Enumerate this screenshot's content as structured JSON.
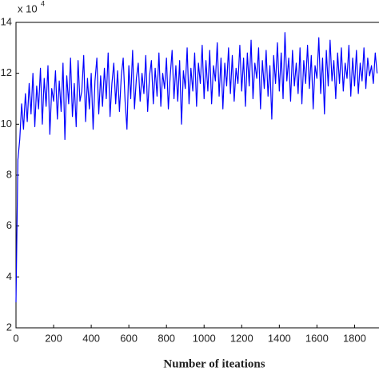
{
  "chart_data": {
    "type": "line",
    "x_label": "Number of iteations",
    "y_multiplier": {
      "base": "x 10",
      "exponent": "4"
    },
    "xlim": [
      0,
      1930
    ],
    "ylim": [
      2,
      14
    ],
    "xticks": [
      0,
      200,
      400,
      600,
      800,
      1000,
      1200,
      1400,
      1600,
      1800
    ],
    "yticks": [
      2,
      4,
      6,
      8,
      10,
      12,
      14
    ],
    "grid": false,
    "x": [
      0,
      10,
      20,
      30,
      40,
      50,
      60,
      70,
      80,
      90,
      100,
      110,
      120,
      130,
      140,
      150,
      160,
      170,
      180,
      190,
      200,
      210,
      220,
      230,
      240,
      250,
      260,
      270,
      280,
      290,
      300,
      310,
      320,
      330,
      340,
      350,
      360,
      370,
      380,
      390,
      400,
      410,
      420,
      430,
      440,
      450,
      460,
      470,
      480,
      490,
      500,
      510,
      520,
      530,
      540,
      550,
      560,
      570,
      580,
      590,
      600,
      610,
      620,
      630,
      640,
      650,
      660,
      670,
      680,
      690,
      700,
      710,
      720,
      730,
      740,
      750,
      760,
      770,
      780,
      790,
      800,
      810,
      820,
      830,
      840,
      850,
      860,
      870,
      880,
      890,
      900,
      910,
      920,
      930,
      940,
      950,
      960,
      970,
      980,
      990,
      1000,
      1010,
      1020,
      1030,
      1040,
      1050,
      1060,
      1070,
      1080,
      1090,
      1100,
      1110,
      1120,
      1130,
      1140,
      1150,
      1160,
      1170,
      1180,
      1190,
      1200,
      1210,
      1220,
      1230,
      1240,
      1250,
      1260,
      1270,
      1280,
      1290,
      1300,
      1310,
      1320,
      1330,
      1340,
      1350,
      1360,
      1370,
      1380,
      1390,
      1400,
      1410,
      1420,
      1430,
      1440,
      1450,
      1460,
      1470,
      1480,
      1490,
      1500,
      1510,
      1520,
      1530,
      1540,
      1550,
      1560,
      1570,
      1580,
      1590,
      1600,
      1610,
      1620,
      1630,
      1640,
      1650,
      1660,
      1670,
      1680,
      1690,
      1700,
      1710,
      1720,
      1730,
      1740,
      1750,
      1760,
      1770,
      1780,
      1790,
      1800,
      1810,
      1820,
      1830,
      1840,
      1850,
      1860,
      1870,
      1880,
      1890,
      1900,
      1910,
      1920
    ],
    "series": [
      {
        "color": "#0000ff",
        "values": [
          3.0,
          8.6,
          9.4,
          10.8,
          9.8,
          11.2,
          10.1,
          11.6,
          10.4,
          12.0,
          9.9,
          11.5,
          10.6,
          12.2,
          10.0,
          11.8,
          10.7,
          12.3,
          9.6,
          11.4,
          10.9,
          12.1,
          10.2,
          11.7,
          10.5,
          12.4,
          9.4,
          11.9,
          10.8,
          12.6,
          10.3,
          11.6,
          9.9,
          12.5,
          10.9,
          11.3,
          12.7,
          10.1,
          11.8,
          10.6,
          12.0,
          9.8,
          11.7,
          12.6,
          10.4,
          11.9,
          10.7,
          12.2,
          11.0,
          12.8,
          10.3,
          11.6,
          12.4,
          10.8,
          12.1,
          10.5,
          11.9,
          12.6,
          10.9,
          9.8,
          12.3,
          11.0,
          12.9,
          10.6,
          11.8,
          12.4,
          10.9,
          12.0,
          11.2,
          12.7,
          10.5,
          11.9,
          12.5,
          10.8,
          12.2,
          11.1,
          12.8,
          10.7,
          12.0,
          11.4,
          12.6,
          10.6,
          11.9,
          12.9,
          11.0,
          12.3,
          10.9,
          12.5,
          10.0,
          12.1,
          11.4,
          13.0,
          10.8,
          12.2,
          11.3,
          12.8,
          10.7,
          12.4,
          11.6,
          13.1,
          11.0,
          12.5,
          11.3,
          12.9,
          10.8,
          12.3,
          11.7,
          13.2,
          11.1,
          12.6,
          10.6,
          12.4,
          11.5,
          13.0,
          11.2,
          12.7,
          10.9,
          12.2,
          11.6,
          13.1,
          11.3,
          12.6,
          10.7,
          12.8,
          11.5,
          13.3,
          11.0,
          12.4,
          11.8,
          13.0,
          10.6,
          12.5,
          11.4,
          12.9,
          11.1,
          12.3,
          10.2,
          12.7,
          11.6,
          13.2,
          11.3,
          12.8,
          11.0,
          13.6,
          11.7,
          12.6,
          10.9,
          12.9,
          11.5,
          12.4,
          11.2,
          13.0,
          10.8,
          12.5,
          11.6,
          13.1,
          11.4,
          12.7,
          10.6,
          12.3,
          11.8,
          13.4,
          11.2,
          12.6,
          10.4,
          12.9,
          11.5,
          13.3,
          11.7,
          12.5,
          11.0,
          12.8,
          11.6,
          13.0,
          11.3,
          12.4,
          11.8,
          13.1,
          11.1,
          12.6,
          11.5,
          12.9,
          11.2,
          12.4,
          11.7,
          13.0,
          11.4,
          12.6,
          11.9,
          12.3,
          11.6,
          12.8,
          12.0
        ]
      }
    ]
  }
}
